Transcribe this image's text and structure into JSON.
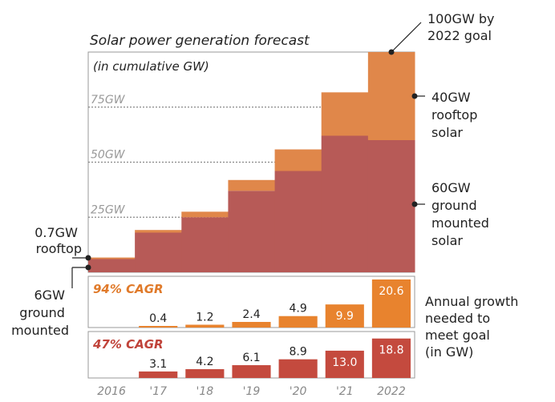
{
  "title": "Solar power generation forecast",
  "subtitle": "(in cumulative GW)",
  "colors": {
    "ground": "#B75A57",
    "rooftop": "#E0874A",
    "growth_rooftop": "#E8832E",
    "growth_ground": "#C44A3E",
    "cagr_rooftop": "#E07A2A",
    "cagr_ground": "#C0433A",
    "gridline": "#888888",
    "frame": "#999999"
  },
  "chart_data": [
    {
      "type": "bar",
      "stacked": true,
      "title": "Solar power generation forecast",
      "subtitle": "(in cumulative GW)",
      "categories": [
        "2016",
        "'17",
        "'18",
        "'19",
        "'20",
        "'21",
        "2022"
      ],
      "series": [
        {
          "name": "ground mounted solar",
          "values": [
            6,
            18,
            25,
            37,
            46,
            62,
            60
          ]
        },
        {
          "name": "rooftop solar",
          "values": [
            0.7,
            1.2,
            2.5,
            4.9,
            9.8,
            19.7,
            40
          ]
        }
      ],
      "gridlines": [
        {
          "value": 25,
          "label": "25GW"
        },
        {
          "value": 50,
          "label": "50GW"
        },
        {
          "value": 75,
          "label": "75GW"
        }
      ],
      "ylim": [
        0,
        100
      ]
    },
    {
      "type": "bar",
      "label": "94% CAGR",
      "categories": [
        "'17",
        "'18",
        "'19",
        "'20",
        "'21",
        "2022"
      ],
      "values": [
        0.4,
        1.2,
        2.4,
        4.9,
        9.9,
        20.6
      ],
      "labels": [
        "0.4",
        "1.2",
        "2.4",
        "4.9",
        "9.9",
        "20.6"
      ]
    },
    {
      "type": "bar",
      "label": "47% CAGR",
      "categories": [
        "'17",
        "'18",
        "'19",
        "'20",
        "'21",
        "2022"
      ],
      "values": [
        3.1,
        4.2,
        6.1,
        8.9,
        13.0,
        18.8
      ],
      "labels": [
        "3.1",
        "4.2",
        "6.1",
        "8.9",
        "13.0",
        "18.8"
      ]
    }
  ],
  "annotations": {
    "goal": [
      "100GW by",
      "2022 goal"
    ],
    "rooftop_2022": [
      "40GW",
      "rooftop",
      "solar"
    ],
    "ground_2022": [
      "60GW",
      "ground",
      "mounted",
      "solar"
    ],
    "rooftop_2016": [
      "0.7GW",
      "rooftop"
    ],
    "ground_2016": [
      "6GW",
      "ground",
      "mounted"
    ],
    "growth_note": [
      "Annual growth",
      "needed to",
      "meet goal",
      "(in GW)"
    ]
  }
}
